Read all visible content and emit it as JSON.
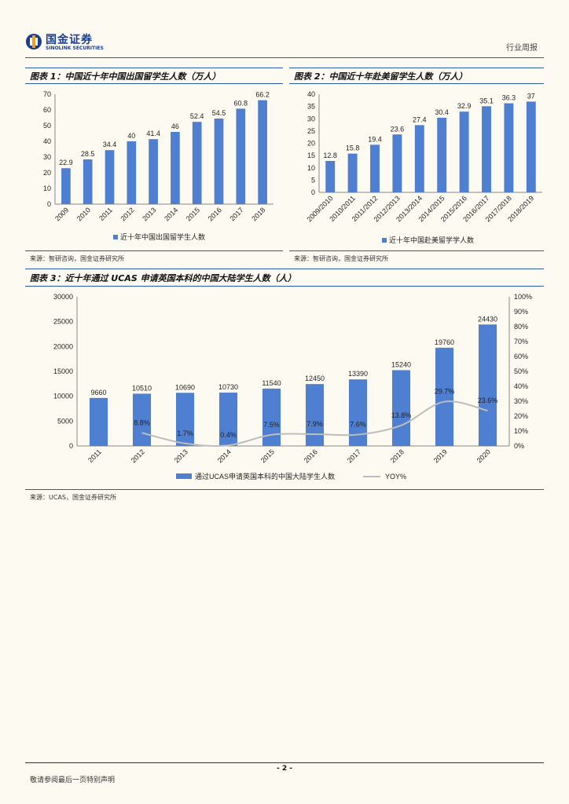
{
  "header": {
    "logo_cn": "国金证券",
    "logo_en": "SINOLINK SECURITIES",
    "report_type": "行业周报"
  },
  "figures": [
    {
      "title": "图表 1：中国近十年中国出国留学生人数（万人）",
      "source": "来源：智研咨询，国金证券研究所"
    },
    {
      "title": "图表 2：中国近十年赴美留学生人数（万人）",
      "source": "来源：智研咨询，国金证券研究所"
    },
    {
      "title": "图表 3：近十年通过 UCAS 申请英国本科的中国大陆学生人数（人）",
      "source": "来源：UCAS，国金证券研究所"
    }
  ],
  "chart_data": [
    {
      "type": "bar",
      "categories": [
        "2009",
        "2010",
        "2011",
        "2012",
        "2013",
        "2014",
        "2015",
        "2016",
        "2017",
        "2018"
      ],
      "values": [
        22.9,
        28.5,
        34.4,
        40,
        41.4,
        46,
        52.4,
        54.5,
        60.8,
        66.2
      ],
      "value_labels": [
        "22.9",
        "28.5",
        "34.4",
        "40",
        "41.4",
        "46",
        "52.4",
        "54.5",
        "60.8",
        "66.2"
      ],
      "legend": "近十年中国出国留学生人数",
      "ylim": [
        0,
        70
      ],
      "yticks": [
        0,
        10,
        20,
        30,
        40,
        50,
        60,
        70
      ],
      "color": "#4f7fd1"
    },
    {
      "type": "bar",
      "categories": [
        "2009/2010",
        "2010/2011",
        "2011/2012",
        "2012/2013",
        "2013/2014",
        "2014/2015",
        "2015/2016",
        "2016/2017",
        "2017/2018",
        "2018/2019"
      ],
      "values": [
        12.8,
        15.8,
        19.4,
        23.6,
        27.4,
        30.4,
        32.9,
        35.1,
        36.3,
        37
      ],
      "value_labels": [
        "12.8",
        "15.8",
        "19.4",
        "23.6",
        "27.4",
        "30.4",
        "32.9",
        "35.1",
        "36.3",
        "37"
      ],
      "legend": "近十年中国赴美留学学人数",
      "ylim": [
        0,
        40
      ],
      "yticks": [
        0,
        5,
        10,
        15,
        20,
        25,
        30,
        35,
        40
      ],
      "color": "#4f7fd1"
    },
    {
      "type": "bar",
      "categories": [
        "2011",
        "2012",
        "2013",
        "2014",
        "2015",
        "2016",
        "2017",
        "2018",
        "2019",
        "2020"
      ],
      "values": [
        9660,
        10510,
        10690,
        10730,
        11540,
        12450,
        13390,
        15240,
        19760,
        24430
      ],
      "value_labels": [
        "9660",
        "10510",
        "10690",
        "10730",
        "11540",
        "12450",
        "13390",
        "15240",
        "19760",
        "24430"
      ],
      "legend": "通过UCAS申请英国本科的中国大陆学生人数",
      "ylim": [
        0,
        30000
      ],
      "yticks": [
        0,
        5000,
        10000,
        15000,
        20000,
        25000,
        30000
      ],
      "ytick_labels": [
        "0",
        "5000",
        "10000",
        "15000",
        "20000",
        "25000",
        "30000"
      ],
      "color": "#4f7fd1",
      "line_series": {
        "name": "YOY%",
        "categories": [
          "2012",
          "2013",
          "2014",
          "2015",
          "2016",
          "2017",
          "2018",
          "2019",
          "2020"
        ],
        "values": [
          8.8,
          1.7,
          0.4,
          7.5,
          7.9,
          7.6,
          13.8,
          29.7,
          23.6
        ],
        "labels": [
          "8.8%",
          "1.7%",
          "0.4%",
          "7.5%",
          "7.9%",
          "7.6%",
          "13.8%",
          "29.7%",
          "23.6%"
        ],
        "ylim": [
          0,
          100
        ],
        "yticks": [
          0,
          10,
          20,
          30,
          40,
          50,
          60,
          70,
          80,
          90,
          100
        ],
        "ytick_labels": [
          "0%",
          "10%",
          "20%",
          "30%",
          "40%",
          "50%",
          "60%",
          "70%",
          "80%",
          "90%",
          "100%"
        ],
        "color": "#bdbdbd"
      }
    }
  ],
  "footer": {
    "page": "- 2 -",
    "disclaimer": "敬请参阅最后一页特别声明"
  }
}
